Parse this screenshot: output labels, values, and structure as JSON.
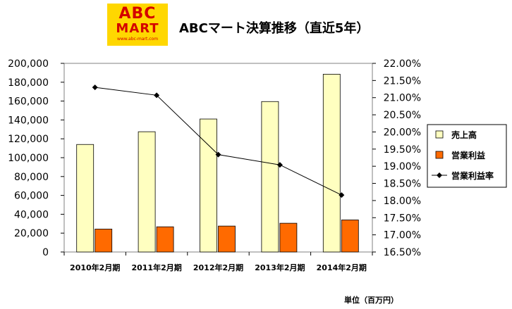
{
  "logo": {
    "line1": "ABC",
    "line2": "MART",
    "line3": "www.abc-mart.com"
  },
  "title": "ABCマート決算推移（直近5年）",
  "unit_note": "単位（百万円）",
  "colors": {
    "sales": "#ffffc0",
    "operating_profit": "#ff6a00",
    "margin_line": "#000000"
  },
  "chart_data": {
    "type": "bar",
    "categories": [
      "2010年2月期",
      "2011年2月期",
      "2012年2月期",
      "2013年2月期",
      "2014年2月期"
    ],
    "series": [
      {
        "name": "売上高",
        "axis": "left",
        "kind": "bar",
        "values": [
          114000,
          127500,
          141000,
          159500,
          188500
        ]
      },
      {
        "name": "営業利益",
        "axis": "left",
        "kind": "bar",
        "values": [
          24300,
          26700,
          27500,
          30500,
          34000
        ]
      },
      {
        "name": "営業利益率",
        "axis": "right",
        "kind": "line",
        "values": [
          21.3,
          21.07,
          19.34,
          19.04,
          18.16
        ]
      }
    ],
    "y_left": {
      "min": 0,
      "max": 200000,
      "ticks": [
        "0",
        "20,000",
        "40,000",
        "60,000",
        "80,000",
        "100,000",
        "120,000",
        "140,000",
        "160,000",
        "180,000",
        "200,000"
      ]
    },
    "y_right": {
      "min": 16.5,
      "max": 22.0,
      "ticks": [
        "16.50%",
        "17.00%",
        "17.50%",
        "18.00%",
        "18.50%",
        "19.00%",
        "19.50%",
        "20.00%",
        "20.50%",
        "21.00%",
        "21.50%",
        "22.00%"
      ]
    },
    "legend": [
      "売上高",
      "営業利益",
      "営業利益率"
    ],
    "legend_position": "right",
    "grid": false
  }
}
